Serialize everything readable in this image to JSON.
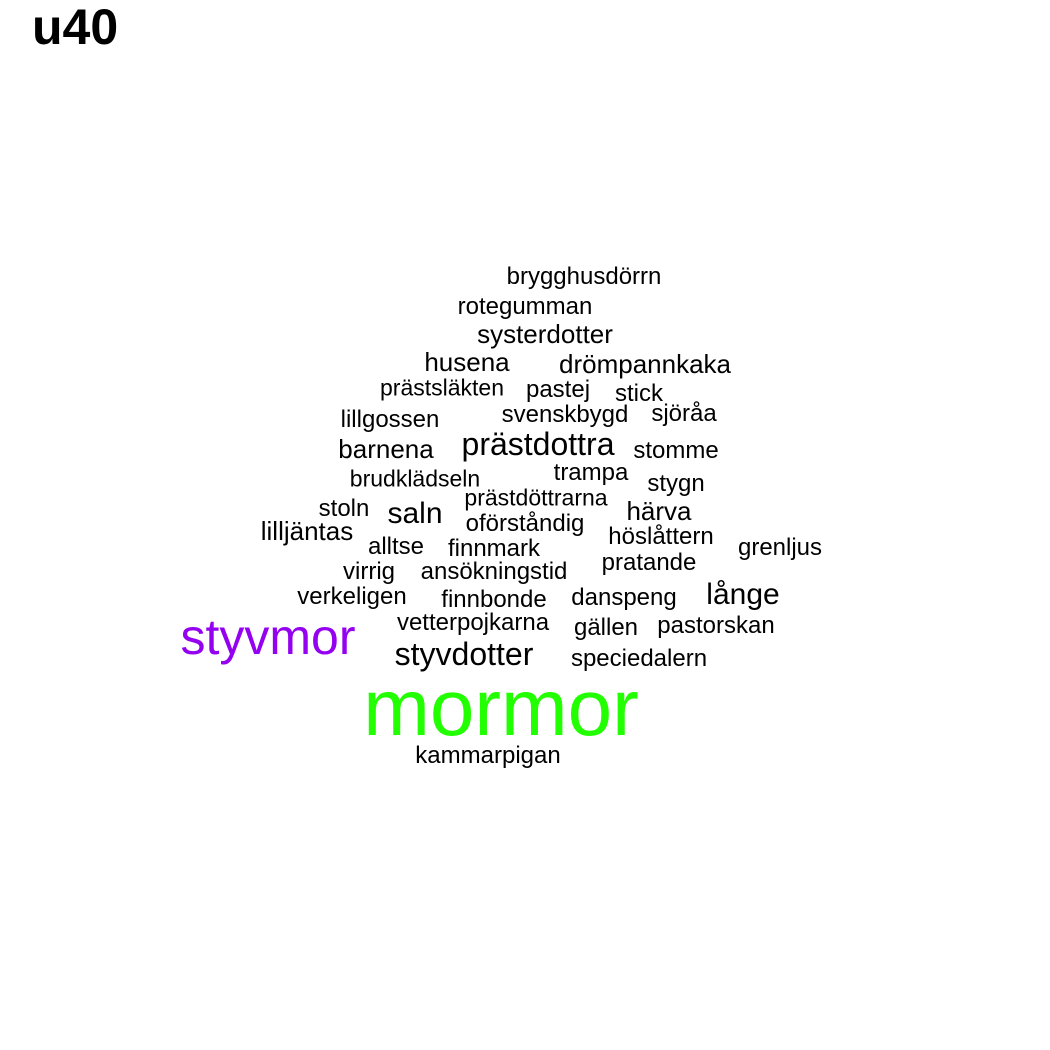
{
  "title": "u40",
  "colors": {
    "default": "#000000",
    "mormor": "#22ff00",
    "styvmor": "#9400f0"
  },
  "words": [
    {
      "text": "brygghusdörrn"
    },
    {
      "text": "rotegumman"
    },
    {
      "text": "systerdotter"
    },
    {
      "text": "husena"
    },
    {
      "text": "drömpannkaka"
    },
    {
      "text": "prästsläkten"
    },
    {
      "text": "pastej"
    },
    {
      "text": "stick"
    },
    {
      "text": "lillgossen"
    },
    {
      "text": "svenskbygd"
    },
    {
      "text": "sjöråa"
    },
    {
      "text": "barnena"
    },
    {
      "text": "prästdottra"
    },
    {
      "text": "stomme"
    },
    {
      "text": "brudklädseln"
    },
    {
      "text": "trampa"
    },
    {
      "text": "stygn"
    },
    {
      "text": "prästdöttrarna"
    },
    {
      "text": "stoln"
    },
    {
      "text": "saln"
    },
    {
      "text": "härva"
    },
    {
      "text": "lilljäntas"
    },
    {
      "text": "oförståndig"
    },
    {
      "text": "höslåttern"
    },
    {
      "text": "alltse"
    },
    {
      "text": "finnmark"
    },
    {
      "text": "grenljus"
    },
    {
      "text": "pratande"
    },
    {
      "text": "virrig"
    },
    {
      "text": "ansökningstid"
    },
    {
      "text": "långe"
    },
    {
      "text": "verkeligen"
    },
    {
      "text": "finnbonde"
    },
    {
      "text": "danspeng"
    },
    {
      "text": "vetterpojkarna"
    },
    {
      "text": "gällen"
    },
    {
      "text": "pastorskan"
    },
    {
      "text": "styvmor",
      "color": "#9400f0"
    },
    {
      "text": "styvdotter"
    },
    {
      "text": "speciedalern"
    },
    {
      "text": "mormor",
      "color": "#22ff00"
    },
    {
      "text": "kammarpigan"
    }
  ]
}
